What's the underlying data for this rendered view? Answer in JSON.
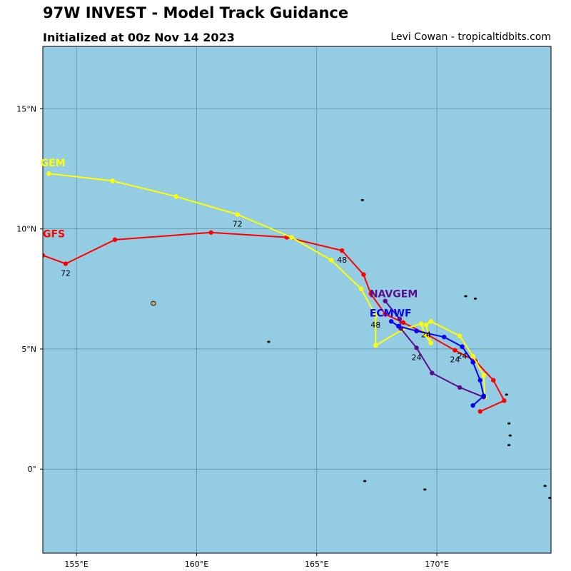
{
  "header": {
    "title": "97W INVEST - Model Track Guidance",
    "subtitle": "Initialized at 00z Nov 14 2023",
    "credit": "Levi Cowan - tropicaltidbits.com"
  },
  "chart_data": {
    "type": "line",
    "xlim": [
      153.6,
      174.75
    ],
    "ylim": [
      -3.5,
      17.6
    ],
    "grid": true,
    "colors": {
      "ocean": "#94cde3",
      "grid": "#3c6f7d",
      "land": "#c4a46a"
    },
    "x_ticks": [
      {
        "value": 155,
        "label": "155°E"
      },
      {
        "value": 160,
        "label": "160°E"
      },
      {
        "value": 165,
        "label": "165°E"
      },
      {
        "value": 170,
        "label": "170°E"
      }
    ],
    "y_ticks": [
      {
        "value": 15,
        "label": "15°N"
      },
      {
        "value": 10,
        "label": "10°N"
      },
      {
        "value": 5,
        "label": "5°N"
      },
      {
        "value": 0,
        "label": "0°"
      }
    ],
    "series": [
      {
        "name": "GFS",
        "color": "#ff0000",
        "label_pos": [
          153.6,
          9.8
        ],
        "points": [
          [
            171.8,
            2.4
          ],
          [
            172.8,
            2.85
          ],
          [
            172.35,
            3.7
          ],
          [
            171.6,
            4.5
          ],
          [
            170.75,
            4.95
          ],
          [
            169.6,
            5.6
          ],
          [
            168.6,
            6.1
          ],
          [
            167.85,
            6.45
          ],
          [
            167.25,
            7.3
          ],
          [
            166.95,
            8.1
          ],
          [
            166.05,
            9.1
          ],
          [
            163.75,
            9.65
          ],
          [
            160.6,
            9.85
          ],
          [
            156.6,
            9.55
          ],
          [
            154.55,
            8.55
          ],
          [
            153.6,
            8.9
          ]
        ],
        "hour_labels": [
          {
            "text": "24",
            "at": [
              170.75,
              4.95
            ]
          },
          {
            "text": "48",
            "at": [
              166.05,
              9.1
            ]
          },
          {
            "text": "72",
            "at": [
              154.55,
              8.55
            ]
          }
        ]
      },
      {
        "name": "GEM",
        "color": "#ffff00",
        "label_pos": [
          153.5,
          12.75
        ],
        "points": [
          [
            172.0,
            3.0
          ],
          [
            171.95,
            3.9
          ],
          [
            171.5,
            4.7
          ],
          [
            170.95,
            5.55
          ],
          [
            169.75,
            6.15
          ],
          [
            169.55,
            6.0
          ],
          [
            169.75,
            5.25
          ],
          [
            169.5,
            5.6
          ],
          [
            169.35,
            6.05
          ],
          [
            168.55,
            5.8
          ],
          [
            167.45,
            5.15
          ],
          [
            167.45,
            6.4
          ],
          [
            166.85,
            7.5
          ],
          [
            165.6,
            8.7
          ],
          [
            163.95,
            9.65
          ],
          [
            161.7,
            10.6
          ],
          [
            159.15,
            11.35
          ],
          [
            156.5,
            12.0
          ],
          [
            153.85,
            12.3
          ]
        ],
        "hour_labels": [
          {
            "text": "24",
            "at": [
              169.55,
              6.0
            ]
          },
          {
            "text": "48",
            "at": [
              167.45,
              6.4
            ]
          },
          {
            "text": "72",
            "at": [
              161.7,
              10.6
            ]
          }
        ]
      },
      {
        "name": "NAVGEM",
        "color": "#5c0d8f",
        "label_pos": [
          167.2,
          7.3
        ],
        "points": [
          [
            171.95,
            3.0
          ],
          [
            170.95,
            3.4
          ],
          [
            169.8,
            4.0
          ],
          [
            169.15,
            5.05
          ],
          [
            168.5,
            5.85
          ],
          [
            168.45,
            6.25
          ],
          [
            167.85,
            7.0
          ]
        ],
        "hour_labels": [
          {
            "text": "24",
            "at": [
              169.15,
              5.05
            ]
          }
        ]
      },
      {
        "name": "ECMWF",
        "color": "#0000ff",
        "label_pos": [
          167.2,
          6.5
        ],
        "points": [
          [
            171.5,
            2.65
          ],
          [
            171.95,
            3.05
          ],
          [
            171.8,
            3.7
          ],
          [
            171.5,
            4.45
          ],
          [
            171.05,
            5.1
          ],
          [
            170.3,
            5.5
          ],
          [
            169.15,
            5.75
          ],
          [
            168.4,
            5.95
          ],
          [
            168.1,
            6.15
          ]
        ],
        "hour_labels": [
          {
            "text": "24",
            "at": [
              171.05,
              5.1
            ]
          }
        ]
      }
    ],
    "islands": [
      [
        158.2,
        6.9
      ],
      [
        166.9,
        11.2
      ],
      [
        163.0,
        5.3
      ],
      [
        171.2,
        7.2
      ],
      [
        171.6,
        7.1
      ],
      [
        172.9,
        3.1
      ],
      [
        173.0,
        1.9
      ],
      [
        173.05,
        1.4
      ],
      [
        173.0,
        1.0
      ],
      [
        167.0,
        -0.5
      ],
      [
        169.5,
        -0.85
      ],
      [
        174.5,
        -0.7
      ],
      [
        174.7,
        -1.2
      ]
    ]
  }
}
